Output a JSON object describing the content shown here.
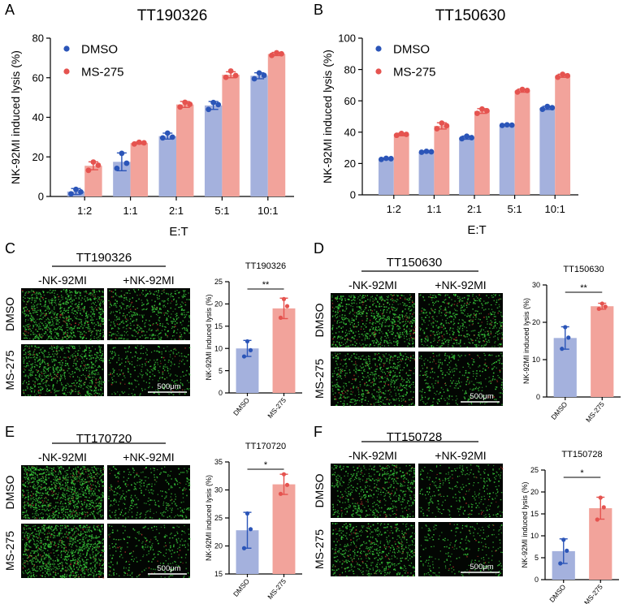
{
  "colors": {
    "dmso_bar": "#a4b1dd",
    "dmso_dot": "#2b55b8",
    "ms_bar": "#f2a39b",
    "ms_dot": "#e5534f",
    "micro_bg": "#030603",
    "micro_green": "#38c93a",
    "micro_red": "#b0302a"
  },
  "panels": {
    "A": "A",
    "B": "B",
    "C": "C",
    "D": "D",
    "E": "E",
    "F": "F"
  },
  "micrographs": {
    "neg_label": "-NK-92MI",
    "pos_label": "+NK-92MI",
    "row_dmso": "DMSO",
    "row_ms": "MS-275",
    "scale_bar": "500μm"
  },
  "chart_data": [
    {
      "id": "A",
      "type": "bar",
      "title": "TT190326",
      "xlabel": "E:T",
      "ylabel": "NK-92MI induced lysis (%)",
      "ylim": [
        0,
        80
      ],
      "yticks": [
        "0",
        "20",
        "40",
        "60",
        "80"
      ],
      "yticks_num": [
        0,
        20,
        40,
        60,
        80
      ],
      "categories": [
        "1:2",
        "1:1",
        "2:1",
        "5:1",
        "10:1"
      ],
      "legend": [
        "DMSO",
        "MS-275"
      ],
      "series": [
        {
          "name": "DMSO",
          "values": [
            2.5,
            17.5,
            30.5,
            46,
            61
          ],
          "err": [
            1.5,
            4.5,
            1.5,
            2,
            1.5
          ],
          "points": [
            [
              1.3,
              3.6,
              2.3
            ],
            [
              14.2,
              21.8,
              16.8
            ],
            [
              29.6,
              32.0,
              30.0
            ],
            [
              44.0,
              47.5,
              46.4
            ],
            [
              59.5,
              62.4,
              61.2
            ]
          ]
        },
        {
          "name": "MS-275",
          "values": [
            15.5,
            27,
            46.5,
            61.5,
            72
          ],
          "err": [
            2,
            0.5,
            1.5,
            1.5,
            0.8
          ],
          "points": [
            [
              13.2,
              17.4,
              15.8
            ],
            [
              26.5,
              27.4,
              27.1
            ],
            [
              45.2,
              47.6,
              46.6
            ],
            [
              60.2,
              63.4,
              61.1
            ],
            [
              71.3,
              72.6,
              72.1
            ]
          ]
        }
      ]
    },
    {
      "id": "B",
      "type": "bar",
      "title": "TT150630",
      "xlabel": "E:T",
      "ylabel": "NK-92MI induced lysis (%)",
      "ylim": [
        0,
        100
      ],
      "yticks": [
        "0",
        "20",
        "40",
        "60",
        "80",
        "100"
      ],
      "yticks_num": [
        0,
        20,
        40,
        60,
        80,
        100
      ],
      "categories": [
        "1:2",
        "1:1",
        "2:1",
        "5:1",
        "10:1"
      ],
      "legend": [
        "DMSO",
        "MS-275"
      ],
      "series": [
        {
          "name": "DMSO",
          "values": [
            23,
            27.5,
            36.5,
            44.5,
            55.5
          ],
          "err": [
            0.5,
            0.5,
            1,
            0.3,
            1
          ],
          "points": [
            [
              22.6,
              23.3,
              23.1
            ],
            [
              27.2,
              27.8,
              27.5
            ],
            [
              35.8,
              37.4,
              36.5
            ],
            [
              44.3,
              44.7,
              44.5
            ],
            [
              54.6,
              56.4,
              55.6
            ]
          ]
        },
        {
          "name": "MS-275",
          "values": [
            38.5,
            44,
            53.5,
            66.5,
            76
          ],
          "err": [
            0.8,
            2,
            1.5,
            1,
            1
          ],
          "points": [
            [
              38.0,
              39.2,
              38.6
            ],
            [
              42.2,
              45.8,
              44.1
            ],
            [
              52.0,
              54.8,
              53.7
            ],
            [
              65.6,
              67.3,
              66.6
            ],
            [
              75.1,
              76.9,
              76.0
            ]
          ]
        }
      ]
    },
    {
      "id": "C",
      "type": "bar",
      "title": "TT190326",
      "xlabel": "",
      "ylabel": "NK-92MI induced lysis (%)",
      "ylim": [
        0,
        25
      ],
      "yticks": [
        "0",
        "5",
        "10",
        "15",
        "20",
        "25"
      ],
      "yticks_num": [
        0,
        5,
        10,
        15,
        20,
        25
      ],
      "categories": [
        "DMSO",
        "MS-275"
      ],
      "values": [
        10,
        19
      ],
      "err": [
        1.8,
        2.3
      ],
      "points": [
        [
          8.2,
          11.6,
          9.6
        ],
        [
          16.9,
          21.1,
          19.5
        ]
      ],
      "significance": "**"
    },
    {
      "id": "D",
      "type": "bar",
      "title": "TT150630",
      "xlabel": "",
      "ylabel": "NK-92MI induced lysis (%)",
      "ylim": [
        0,
        30
      ],
      "yticks": [
        "0",
        "10",
        "20",
        "30"
      ],
      "yticks_num": [
        0,
        10,
        20,
        30
      ],
      "categories": [
        "DMSO",
        "MS-275"
      ],
      "values": [
        15.8,
        24.3
      ],
      "err": [
        3,
        0.8
      ],
      "points": [
        [
          12.9,
          18.7,
          15.9
        ],
        [
          23.6,
          25.0,
          24.2
        ]
      ],
      "significance": "**"
    },
    {
      "id": "E",
      "type": "bar",
      "title": "TT170720",
      "xlabel": "",
      "ylabel": "NK-92MI induced lysis (%)",
      "ylim": [
        15,
        35
      ],
      "yticks": [
        "15",
        "20",
        "25",
        "30",
        "35"
      ],
      "yticks_num": [
        15,
        20,
        25,
        30,
        35
      ],
      "categories": [
        "DMSO",
        "MS-275"
      ],
      "values": [
        22.8,
        31
      ],
      "err": [
        3.2,
        1.8
      ],
      "points": [
        [
          19.6,
          25.8,
          23.0
        ],
        [
          29.3,
          32.8,
          30.9
        ]
      ],
      "significance": "*"
    },
    {
      "id": "F",
      "type": "bar",
      "title": "TT150728",
      "xlabel": "",
      "ylabel": "NK-92MI induced lysis (%)",
      "ylim": [
        0,
        25
      ],
      "yticks": [
        "0",
        "5",
        "10",
        "15",
        "20",
        "25"
      ],
      "yticks_num": [
        0,
        5,
        10,
        15,
        20,
        25
      ],
      "categories": [
        "DMSO",
        "MS-275"
      ],
      "values": [
        6.5,
        16.3
      ],
      "err": [
        2.8,
        2.5
      ],
      "points": [
        [
          3.7,
          9.1,
          6.6
        ],
        [
          13.7,
          18.7,
          16.5
        ]
      ],
      "significance": "*"
    }
  ]
}
